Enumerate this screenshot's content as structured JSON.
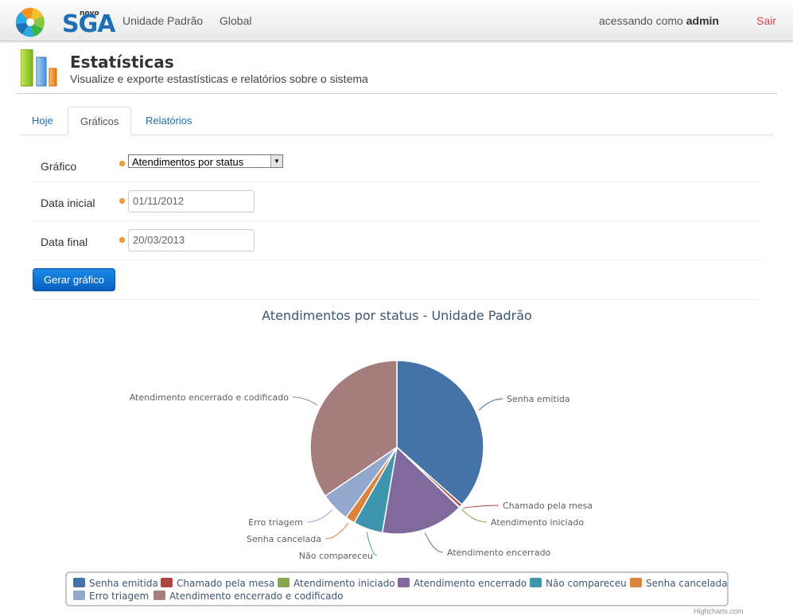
{
  "topbar": {
    "logo_small": "novo",
    "logo_text": "SGA",
    "nav": [
      "Unidade Padrão",
      "Global"
    ],
    "user_prefix": "acessando como",
    "user_name": "admin",
    "logout": "Sair"
  },
  "header": {
    "title": "Estatísticas",
    "subtitle": "Visualize e exporte estastísticas e relatórios sobre o sistema"
  },
  "tabs": [
    "Hoje",
    "Gráficos",
    "Relatórios"
  ],
  "active_tab": "Gráficos",
  "form": {
    "grafico_label": "Gráfico",
    "grafico_value": "Atendimentos por status",
    "data_inicial_label": "Data inicial",
    "data_inicial_value": "01/11/2012",
    "data_final_label": "Data final",
    "data_final_value": "20/03/2013",
    "submit": "Gerar gráfico"
  },
  "chart_data": {
    "type": "pie",
    "title": "Atendimentos por status - Unidade Padrão",
    "legend_position": "bottom",
    "series": [
      {
        "name": "Senha emitida",
        "value": 36.5,
        "color": "#4572A7"
      },
      {
        "name": "Chamado pela mesa",
        "value": 0.6,
        "color": "#AA4643"
      },
      {
        "name": "Atendimento iniciado",
        "value": 0.1,
        "color": "#89A54E"
      },
      {
        "name": "Atendimento encerrado",
        "value": 15.5,
        "color": "#80699B"
      },
      {
        "name": "Não compareceu",
        "value": 5.5,
        "color": "#3D96AE"
      },
      {
        "name": "Senha cancelada",
        "value": 1.8,
        "color": "#DB843D"
      },
      {
        "name": "Erro triagem",
        "value": 5.5,
        "color": "#92A8CD"
      },
      {
        "name": "Atendimento encerrado e codificado",
        "value": 34.5,
        "color": "#A47D7C"
      }
    ]
  },
  "credits": "Highcharts.com"
}
